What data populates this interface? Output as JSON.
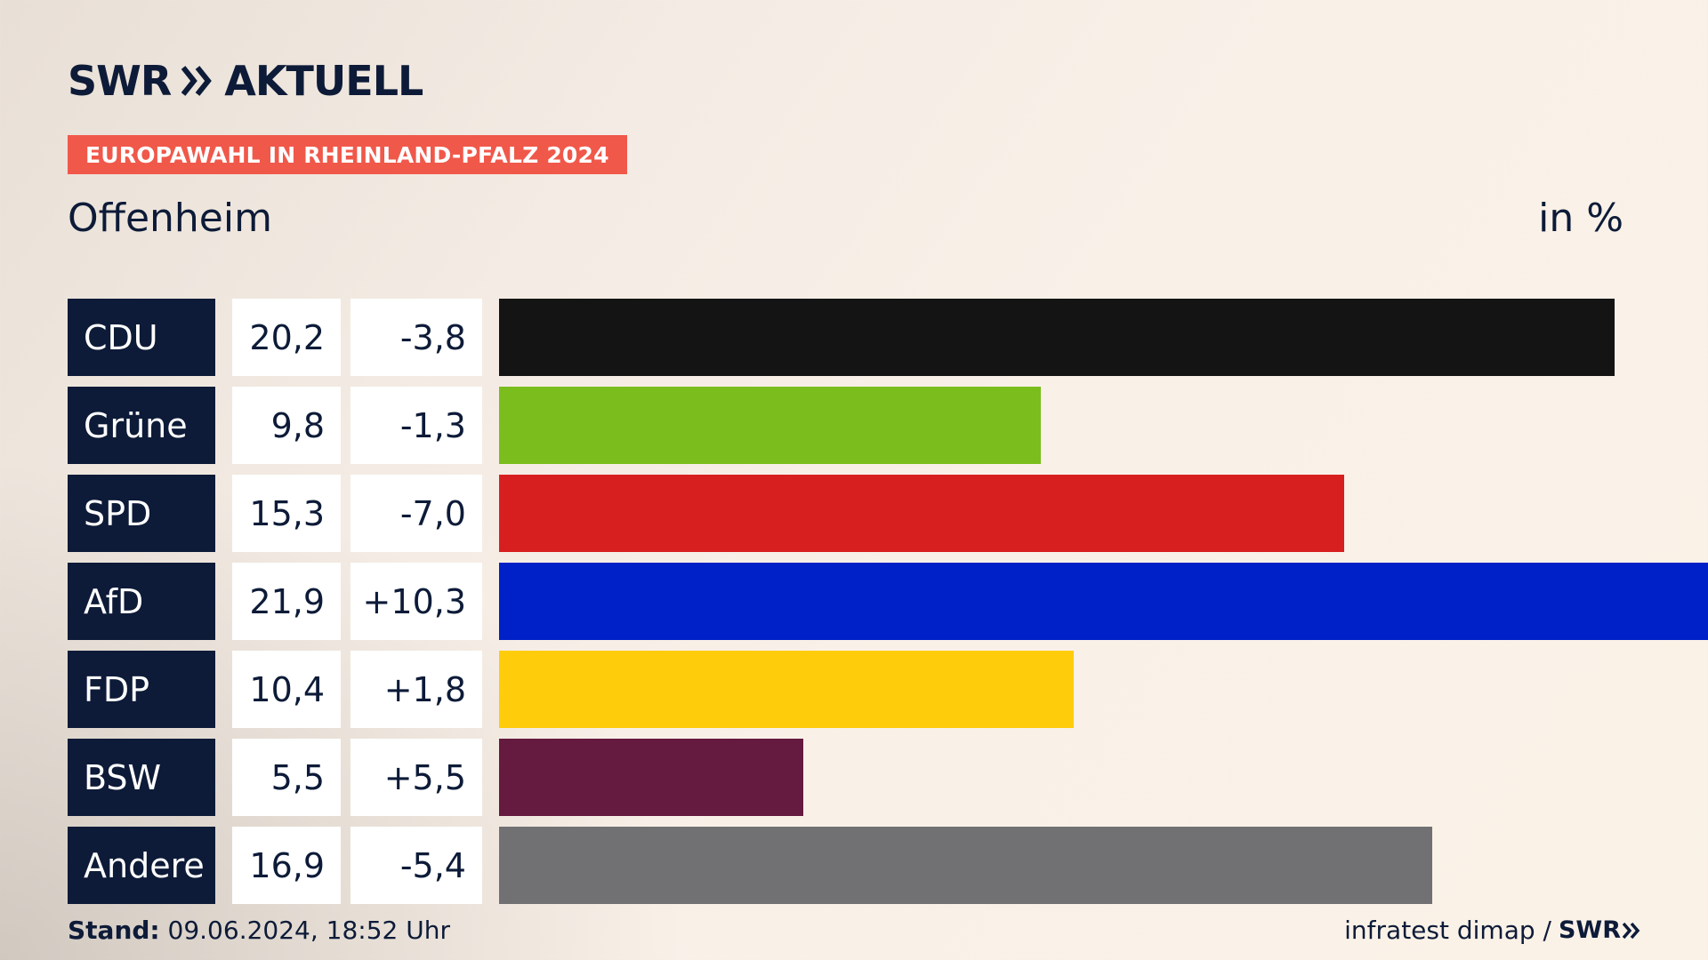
{
  "header": {
    "logo_text_left": "SWR",
    "logo_text_right": "AKTUELL",
    "banner": "EUROPAWAHL IN RHEINLAND-PFALZ 2024"
  },
  "region": "Offenheim",
  "unit_label": "in %",
  "colors": {
    "navy": "#0d1b38",
    "banner": "#f0584a"
  },
  "chart_data": {
    "type": "bar",
    "orientation": "horizontal",
    "title": "Offenheim",
    "unit": "in %",
    "categories": [
      "CDU",
      "Grüne",
      "SPD",
      "AfD",
      "FDP",
      "BSW",
      "Andere"
    ],
    "values": [
      20.2,
      9.8,
      15.3,
      21.9,
      10.4,
      5.5,
      16.9
    ],
    "value_labels": [
      "20,2",
      "9,8",
      "15,3",
      "21,9",
      "10,4",
      "5,5",
      "16,9"
    ],
    "change_labels": [
      "-3,8",
      "-1,3",
      "-7,0",
      "+10,3",
      "+1,8",
      "+5,5",
      "-5,4"
    ],
    "bar_colors": [
      "#141414",
      "#7bbd1d",
      "#d81f1f",
      "#0021c7",
      "#ffcc0b",
      "#651a3f",
      "#717174"
    ],
    "xlim": [
      0,
      21.9
    ]
  },
  "footer": {
    "stand_label": "Stand:",
    "stand_value": "09.06.2024, 18:52 Uhr",
    "source": "infratest dimap /",
    "source_logo": "SWR"
  }
}
